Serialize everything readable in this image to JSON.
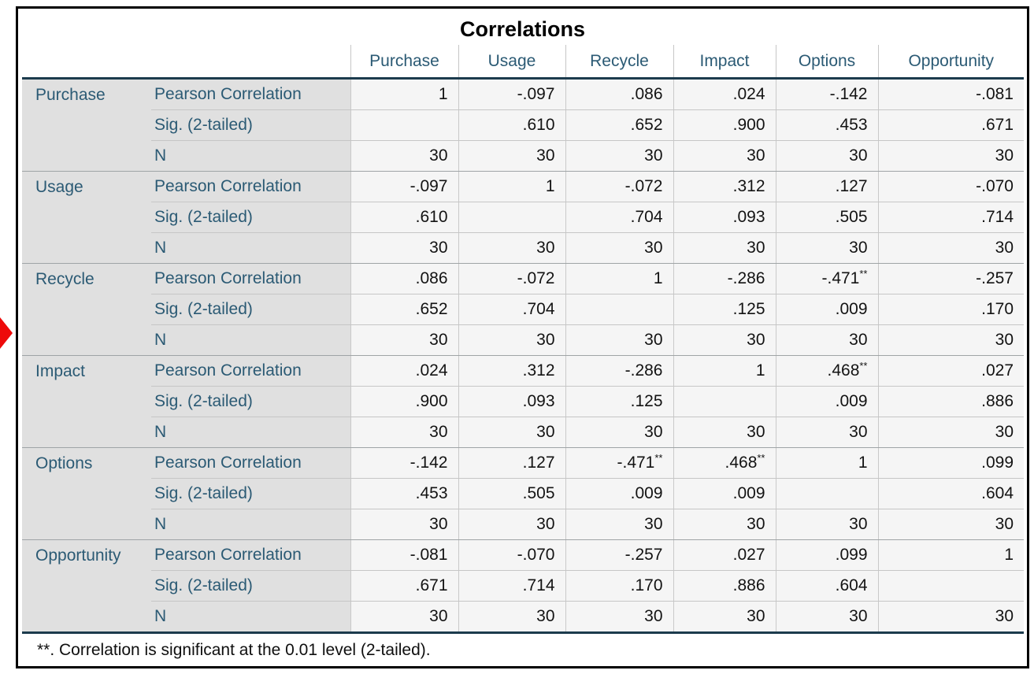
{
  "title": "Correlations",
  "labels": {
    "pearson": "Pearson Correlation",
    "sig": "Sig. (2-tailed)",
    "n": "N"
  },
  "footnote": "**. Correlation is significant at the 0.01 level (2-tailed).",
  "icons": {
    "red_arrow": "red right-pointing triangle annotation"
  },
  "colors": {
    "accent_text": "#2B5A74",
    "heavy_rule": "#1C3B4D",
    "stub_bg": "#E0E0E0",
    "cell_bg": "#F5F5F5",
    "light_rule": "#C6C6C6",
    "group_rule": "#9FA4A6",
    "outer_border": "#000000",
    "arrow_red": "#EE0A0A"
  },
  "chart_data": {
    "type": "table",
    "title": "Correlations",
    "variables": [
      "Purchase",
      "Usage",
      "Recycle",
      "Impact",
      "Options",
      "Opportunity"
    ],
    "row_stats": [
      "Pearson Correlation",
      "Sig. (2-tailed)",
      "N"
    ],
    "pearson": [
      [
        "1",
        "-.097",
        ".086",
        ".024",
        "-.142",
        "-.081"
      ],
      [
        "-.097",
        "1",
        "-.072",
        ".312",
        ".127",
        "-.070"
      ],
      [
        ".086",
        "-.072",
        "1",
        "-.286",
        "-.471",
        "-.257"
      ],
      [
        ".024",
        ".312",
        "-.286",
        "1",
        ".468",
        ".027"
      ],
      [
        "-.142",
        ".127",
        "-.471",
        ".468",
        "1",
        ".099"
      ],
      [
        "-.081",
        "-.070",
        "-.257",
        ".027",
        ".099",
        "1"
      ]
    ],
    "stars": [
      [
        "",
        "",
        "",
        "",
        "",
        ""
      ],
      [
        "",
        "",
        "",
        "",
        "",
        ""
      ],
      [
        "",
        "",
        "",
        "",
        "**",
        ""
      ],
      [
        "",
        "",
        "",
        "",
        "**",
        ""
      ],
      [
        "",
        "",
        "**",
        "**",
        "",
        ""
      ],
      [
        "",
        "",
        "",
        "",
        "",
        ""
      ]
    ],
    "sig": [
      [
        "",
        ".610",
        ".652",
        ".900",
        ".453",
        ".671"
      ],
      [
        ".610",
        "",
        ".704",
        ".093",
        ".505",
        ".714"
      ],
      [
        ".652",
        ".704",
        "",
        ".125",
        ".009",
        ".170"
      ],
      [
        ".900",
        ".093",
        ".125",
        "",
        ".009",
        ".886"
      ],
      [
        ".453",
        ".505",
        ".009",
        ".009",
        "",
        ".604"
      ],
      [
        ".671",
        ".714",
        ".170",
        ".886",
        ".604",
        ""
      ]
    ],
    "n": [
      [
        "30",
        "30",
        "30",
        "30",
        "30",
        "30"
      ],
      [
        "30",
        "30",
        "30",
        "30",
        "30",
        "30"
      ],
      [
        "30",
        "30",
        "30",
        "30",
        "30",
        "30"
      ],
      [
        "30",
        "30",
        "30",
        "30",
        "30",
        "30"
      ],
      [
        "30",
        "30",
        "30",
        "30",
        "30",
        "30"
      ],
      [
        "30",
        "30",
        "30",
        "30",
        "30",
        "30"
      ]
    ],
    "footnote": "**. Correlation is significant at the 0.01 level (2-tailed)."
  }
}
